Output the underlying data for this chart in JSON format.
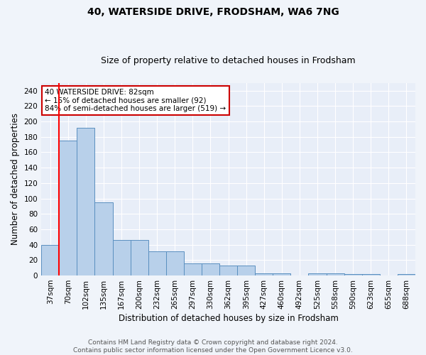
{
  "title": "40, WATERSIDE DRIVE, FRODSHAM, WA6 7NG",
  "subtitle": "Size of property relative to detached houses in Frodsham",
  "xlabel": "Distribution of detached houses by size in Frodsham",
  "ylabel": "Number of detached properties",
  "categories": [
    "37sqm",
    "70sqm",
    "102sqm",
    "135sqm",
    "167sqm",
    "200sqm",
    "232sqm",
    "265sqm",
    "297sqm",
    "330sqm",
    "362sqm",
    "395sqm",
    "427sqm",
    "460sqm",
    "492sqm",
    "525sqm",
    "558sqm",
    "590sqm",
    "623sqm",
    "655sqm",
    "688sqm"
  ],
  "bar_heights": [
    40,
    175,
    192,
    95,
    46,
    46,
    31,
    31,
    16,
    16,
    13,
    13,
    3,
    3,
    0,
    3,
    3,
    2,
    2,
    0,
    2
  ],
  "bar_color": "#b8d0ea",
  "bar_edge_color": "#5a8fc0",
  "red_line_x": 0.5,
  "annotation_text": "40 WATERSIDE DRIVE: 82sqm\n← 15% of detached houses are smaller (92)\n84% of semi-detached houses are larger (519) →",
  "annotation_box_color": "#ffffff",
  "annotation_box_edge": "#cc0000",
  "ylim": [
    0,
    250
  ],
  "yticks": [
    0,
    20,
    40,
    60,
    80,
    100,
    120,
    140,
    160,
    180,
    200,
    220,
    240
  ],
  "footer_line1": "Contains HM Land Registry data © Crown copyright and database right 2024.",
  "footer_line2": "Contains public sector information licensed under the Open Government Licence v3.0.",
  "fig_facecolor": "#f0f4fa",
  "ax_facecolor": "#e8eef8",
  "grid_color": "#ffffff",
  "title_fontsize": 10,
  "subtitle_fontsize": 9,
  "axis_label_fontsize": 8.5,
  "tick_fontsize": 7.5,
  "annotation_fontsize": 7.5,
  "footer_fontsize": 6.5
}
